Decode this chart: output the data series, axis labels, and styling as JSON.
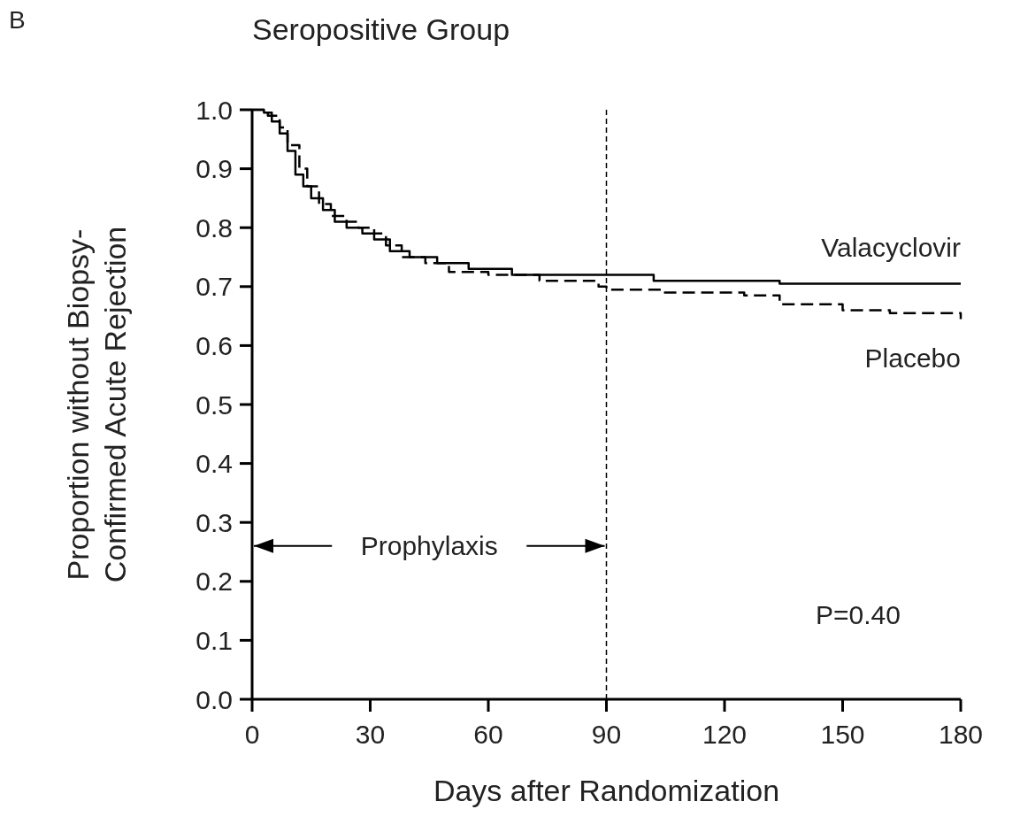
{
  "chart_data": {
    "type": "step",
    "title": "Seropositive Group",
    "xlabel": "Days after Randomization",
    "ylabel": "Proportion without Biopsy-\nConfirmed Acute Rejection",
    "xlim": [
      0,
      180
    ],
    "xticks": [
      0,
      30,
      60,
      90,
      120,
      150,
      180
    ],
    "ylim": [
      0,
      1
    ],
    "yticks": [
      {
        "value": 0,
        "label": "0.0"
      },
      0.1,
      0.2,
      0.3,
      0.4,
      0.5,
      0.6,
      0.7,
      0.8,
      0.9,
      {
        "value": 1,
        "label": "1.0"
      }
    ],
    "grid": false,
    "marker": "none",
    "series": [
      {
        "name": "Valacyclovir",
        "color": "#000000",
        "line_style": "solid",
        "x": [
          0,
          3,
          5,
          7,
          9,
          11,
          13,
          15,
          18,
          21,
          24,
          28,
          31,
          35,
          40,
          47,
          55,
          66,
          80,
          102,
          134,
          180
        ],
        "values": [
          1.0,
          0.995,
          0.98,
          0.96,
          0.93,
          0.89,
          0.87,
          0.85,
          0.83,
          0.81,
          0.8,
          0.79,
          0.78,
          0.76,
          0.75,
          0.74,
          0.73,
          0.72,
          0.72,
          0.71,
          0.705,
          0.705
        ]
      },
      {
        "name": "Placebo",
        "color": "#000000",
        "line_style": "dashed",
        "x": [
          0,
          4,
          7,
          9,
          12,
          14,
          17,
          20,
          24,
          27,
          31,
          34,
          38,
          44,
          50,
          60,
          73,
          88,
          90,
          104,
          125,
          134,
          150,
          162,
          180
        ],
        "values": [
          1.0,
          0.99,
          0.97,
          0.94,
          0.9,
          0.87,
          0.84,
          0.82,
          0.81,
          0.8,
          0.79,
          0.77,
          0.75,
          0.74,
          0.725,
          0.72,
          0.71,
          0.7,
          0.695,
          0.69,
          0.685,
          0.67,
          0.66,
          0.655,
          0.645
        ]
      }
    ],
    "ref_lines": [
      {
        "axis": "x",
        "value": 90,
        "line_style": "dashed",
        "color": "#000000"
      }
    ],
    "annotations": [
      "B",
      {
        "text": "Prophylaxis",
        "x": 90,
        "y": 0.26
      },
      "P=0.40"
    ]
  }
}
